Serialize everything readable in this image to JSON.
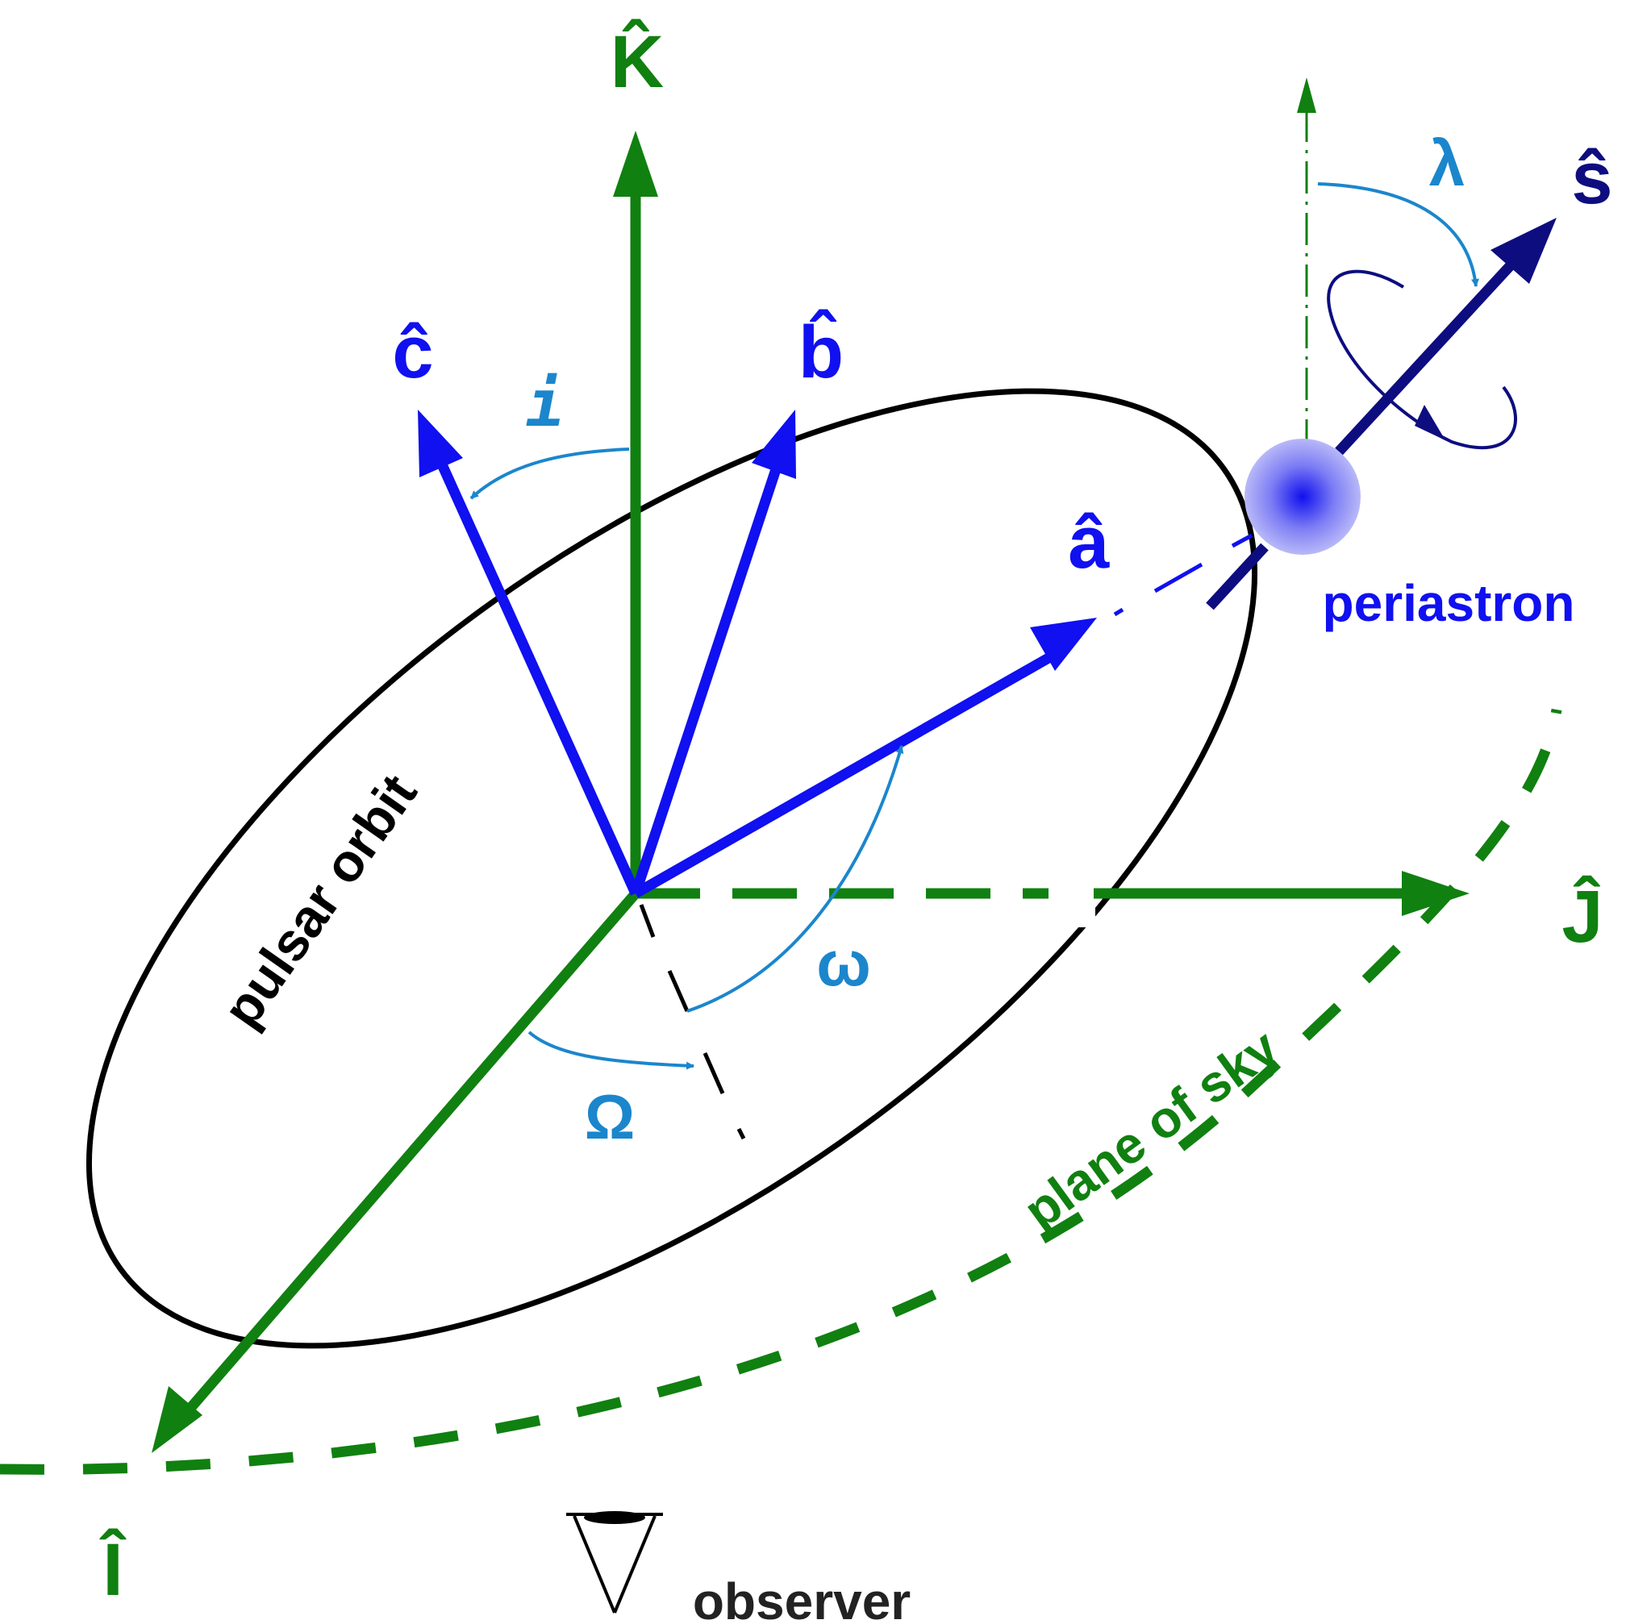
{
  "axes": {
    "K": "K̂",
    "I": "Î",
    "J": "Ĵ"
  },
  "orbit_vectors": {
    "a": "â",
    "b": "b̂",
    "c": "ĉ"
  },
  "spin": {
    "s": "ŝ"
  },
  "angles": {
    "inclination": "i",
    "longitude_node": "Ω",
    "periastron_arg": "ω",
    "lambda": "λ"
  },
  "labels": {
    "pulsar_orbit": "pulsar orbit",
    "plane_of_sky": "plane of sky",
    "periastron": "periastron",
    "observer": "observer"
  },
  "colors": {
    "axes_green": "#108010",
    "orbit_blue": "#1010f0",
    "spin_navy": "#0d0d80",
    "angle_cyan": "#1b86cc",
    "orbit_black": "#000000"
  },
  "icons": {
    "observer": "eye-icon",
    "pulsar": "pulsar-sphere-icon"
  }
}
